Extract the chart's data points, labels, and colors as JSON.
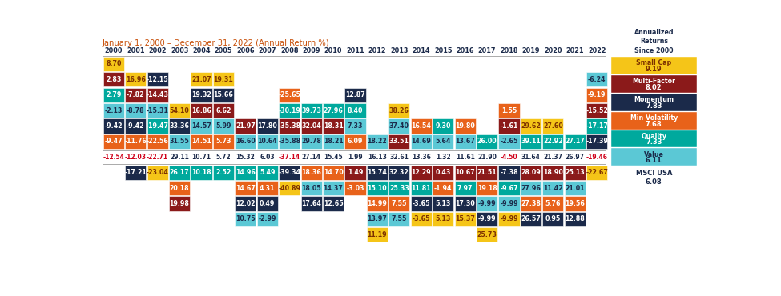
{
  "title": "January 1, 2000 – December 31, 2022 (Annual Return %)",
  "years": [
    2000,
    2001,
    2002,
    2003,
    2004,
    2005,
    2006,
    2007,
    2008,
    2009,
    2010,
    2011,
    2012,
    2013,
    2014,
    2015,
    2016,
    2017,
    2018,
    2019,
    2020,
    2021,
    2022
  ],
  "factors": {
    "Small Cap": {
      "color": "#F5C518",
      "text_color": "#7B3000",
      "annualized": 9.19
    },
    "Multi-Factor": {
      "color": "#8B1A1A",
      "text_color": "#ffffff",
      "annualized": 8.02
    },
    "Momentum": {
      "color": "#1B2A4A",
      "text_color": "#ffffff",
      "annualized": 7.83
    },
    "Min Volatility": {
      "color": "#E8621A",
      "text_color": "#ffffff",
      "annualized": 7.68
    },
    "Quality": {
      "color": "#00A99D",
      "text_color": "#ffffff",
      "annualized": 7.33
    },
    "Value": {
      "color": "#5BC8D5",
      "text_color": "#1B2A4A",
      "annualized": 6.11
    }
  },
  "benchmark_label": "MSCI USA",
  "benchmark_annualized": 6.08,
  "benchmark_returns": [
    -12.54,
    -12.03,
    -22.71,
    29.11,
    10.71,
    5.72,
    15.32,
    6.03,
    -37.14,
    27.14,
    15.45,
    1.99,
    16.13,
    32.61,
    13.36,
    1.32,
    11.61,
    21.9,
    -4.5,
    31.64,
    21.37,
    26.97,
    -19.46
  ],
  "above_rows": [
    [
      [
        "Small Cap",
        8.7
      ],
      [
        "",
        ""
      ],
      [
        "",
        ""
      ],
      [
        "",
        ""
      ],
      [
        "",
        ""
      ],
      [
        "",
        ""
      ],
      [
        "",
        ""
      ],
      [
        "",
        ""
      ],
      [
        "",
        ""
      ],
      [
        "",
        ""
      ],
      [
        "",
        ""
      ],
      [
        "",
        ""
      ],
      [
        "",
        ""
      ],
      [
        "",
        ""
      ],
      [
        "",
        ""
      ],
      [
        "",
        ""
      ],
      [
        "",
        ""
      ],
      [
        "",
        ""
      ],
      [
        "",
        ""
      ],
      [
        "",
        ""
      ],
      [
        "",
        ""
      ],
      [
        "",
        ""
      ],
      [
        "",
        ""
      ]
    ],
    [
      [
        "Multi-Factor",
        2.83
      ],
      [
        "Small Cap",
        16.96
      ],
      [
        "Momentum",
        -12.15
      ],
      [
        "",
        ""
      ],
      [
        "Small Cap",
        21.07
      ],
      [
        "Small Cap",
        19.31
      ],
      [
        "",
        ""
      ],
      [
        "",
        ""
      ],
      [
        "",
        ""
      ],
      [
        "",
        ""
      ],
      [
        "",
        ""
      ],
      [
        "",
        ""
      ],
      [
        "",
        ""
      ],
      [
        "",
        ""
      ],
      [
        "",
        ""
      ],
      [
        "",
        ""
      ],
      [
        "",
        ""
      ],
      [
        "",
        ""
      ],
      [
        "",
        ""
      ],
      [
        "",
        ""
      ],
      [
        "",
        ""
      ],
      [
        "",
        ""
      ],
      [
        "Value",
        -6.24
      ]
    ],
    [
      [
        "Quality",
        2.79
      ],
      [
        "Multi-Factor",
        -7.82
      ],
      [
        "Multi-Factor",
        -14.43
      ],
      [
        "",
        ""
      ],
      [
        "Momentum",
        19.32
      ],
      [
        "Momentum",
        15.66
      ],
      [
        "",
        ""
      ],
      [
        "",
        ""
      ],
      [
        "Min Volatility",
        -25.65
      ],
      [
        "",
        ""
      ],
      [
        "",
        ""
      ],
      [
        "Momentum",
        12.87
      ],
      [
        "",
        ""
      ],
      [
        "",
        ""
      ],
      [
        "",
        ""
      ],
      [
        "",
        ""
      ],
      [
        "",
        ""
      ],
      [
        "",
        ""
      ],
      [
        "",
        ""
      ],
      [
        "",
        ""
      ],
      [
        "",
        ""
      ],
      [
        "",
        ""
      ],
      [
        "Min Volatility",
        -9.19
      ]
    ],
    [
      [
        "Value",
        -2.13
      ],
      [
        "Value",
        -8.78
      ],
      [
        "Value",
        -15.31
      ],
      [
        "Small Cap",
        54.1
      ],
      [
        "Multi-Factor",
        16.86
      ],
      [
        "Multi-Factor",
        6.62
      ],
      [
        "",
        ""
      ],
      [
        "",
        ""
      ],
      [
        "Quality",
        -30.19
      ],
      [
        "Quality",
        39.73
      ],
      [
        "Quality",
        27.96
      ],
      [
        "Quality",
        8.4
      ],
      [
        "",
        ""
      ],
      [
        "Small Cap",
        38.26
      ],
      [
        "",
        ""
      ],
      [
        "",
        ""
      ],
      [
        "",
        ""
      ],
      [
        "",
        ""
      ],
      [
        "Min Volatility",
        1.55
      ],
      [
        "",
        ""
      ],
      [
        "",
        ""
      ],
      [
        "",
        ""
      ],
      [
        "Multi-Factor",
        -15.52
      ]
    ],
    [
      [
        "Momentum",
        -9.42
      ],
      [
        "Momentum",
        -9.42
      ],
      [
        "Quality",
        -19.47
      ],
      [
        "Momentum",
        33.36
      ],
      [
        "Value",
        14.57
      ],
      [
        "Value",
        5.99
      ],
      [
        "Multi-Factor",
        21.97
      ],
      [
        "Momentum",
        17.8
      ],
      [
        "Multi-Factor",
        -35.38
      ],
      [
        "Multi-Factor",
        32.04
      ],
      [
        "Multi-Factor",
        18.31
      ],
      [
        "Value",
        7.33
      ],
      [
        "",
        ""
      ],
      [
        "Value",
        37.4
      ],
      [
        "Min Volatility",
        16.54
      ],
      [
        "Quality",
        9.3
      ],
      [
        "Min Volatility",
        19.8
      ],
      [
        "",
        ""
      ],
      [
        "Multi-Factor",
        -1.61
      ],
      [
        "Small Cap",
        29.62
      ],
      [
        "Small Cap",
        27.6
      ],
      [
        "",
        ""
      ],
      [
        "Quality",
        -17.17
      ]
    ],
    [
      [
        "Min Volatility",
        -9.47
      ],
      [
        "Min Volatility",
        -11.76
      ],
      [
        "Min Volatility",
        -22.56
      ],
      [
        "Value",
        31.55
      ],
      [
        "Min Volatility",
        14.51
      ],
      [
        "Min Volatility",
        5.73
      ],
      [
        "Value",
        16.6
      ],
      [
        "Value",
        10.64
      ],
      [
        "Value",
        -35.88
      ],
      [
        "Value",
        29.78
      ],
      [
        "Value",
        18.21
      ],
      [
        "Min Volatility",
        6.09
      ],
      [
        "Value",
        18.22
      ],
      [
        "Multi-Factor",
        33.51
      ],
      [
        "Value",
        14.69
      ],
      [
        "Value",
        5.64
      ],
      [
        "Value",
        13.67
      ],
      [
        "Quality",
        26.0
      ],
      [
        "Value",
        -2.65
      ],
      [
        "Quality",
        39.11
      ],
      [
        "Quality",
        22.92
      ],
      [
        "Quality",
        27.17
      ],
      [
        "Momentum",
        -17.39
      ]
    ]
  ],
  "below_rows": [
    [
      [
        "",
        ""
      ],
      [
        "Momentum",
        -17.21
      ],
      [
        "Small Cap",
        -23.04
      ],
      [
        "Quality",
        26.17
      ],
      [
        "Quality",
        10.18
      ],
      [
        "Quality",
        2.52
      ],
      [
        "Quality",
        14.96
      ],
      [
        "Quality",
        5.49
      ],
      [
        "Momentum",
        -39.34
      ],
      [
        "Min Volatility",
        18.36
      ],
      [
        "Min Volatility",
        14.7
      ],
      [
        "Multi-Factor",
        1.49
      ],
      [
        "Momentum",
        15.74
      ],
      [
        "Momentum",
        32.32
      ],
      [
        "Multi-Factor",
        12.29
      ],
      [
        "Multi-Factor",
        0.43
      ],
      [
        "Multi-Factor",
        10.67
      ],
      [
        "Multi-Factor",
        21.51
      ],
      [
        "Momentum",
        -7.38
      ],
      [
        "Multi-Factor",
        28.09
      ],
      [
        "Multi-Factor",
        18.9
      ],
      [
        "Multi-Factor",
        25.13
      ],
      [
        "Small Cap",
        -22.67
      ]
    ],
    [
      [
        "",
        ""
      ],
      [
        "",
        ""
      ],
      [
        "",
        ""
      ],
      [
        "Min Volatility",
        20.18
      ],
      [
        "",
        ""
      ],
      [
        "",
        ""
      ],
      [
        "Min Volatility",
        14.67
      ],
      [
        "Min Volatility",
        4.31
      ],
      [
        "Small Cap",
        -40.89
      ],
      [
        "Value",
        18.05
      ],
      [
        "Value",
        14.37
      ],
      [
        "Min Volatility",
        -3.03
      ],
      [
        "Quality",
        15.1
      ],
      [
        "Quality",
        25.33
      ],
      [
        "Quality",
        11.81
      ],
      [
        "Min Volatility",
        -1.94
      ],
      [
        "Quality",
        7.97
      ],
      [
        "Min Volatility",
        19.18
      ],
      [
        "Quality",
        -9.67
      ],
      [
        "Value",
        27.96
      ],
      [
        "Value",
        11.42
      ],
      [
        "Value",
        21.01
      ],
      [
        "",
        ""
      ]
    ],
    [
      [
        "",
        ""
      ],
      [
        "",
        ""
      ],
      [
        "",
        ""
      ],
      [
        "Multi-Factor",
        19.98
      ],
      [
        "",
        ""
      ],
      [
        "",
        ""
      ],
      [
        "Momentum",
        12.02
      ],
      [
        "Momentum",
        0.49
      ],
      [
        "",
        ""
      ],
      [
        "Momentum",
        17.64
      ],
      [
        "Momentum",
        12.65
      ],
      [
        "",
        ""
      ],
      [
        "Min Volatility",
        14.99
      ],
      [
        "Min Volatility",
        7.55
      ],
      [
        "Momentum",
        -3.65
      ],
      [
        "Momentum",
        5.13
      ],
      [
        "Momentum",
        17.3
      ],
      [
        "Value",
        -9.99
      ],
      [
        "Value",
        -9.99
      ],
      [
        "Min Volatility",
        27.38
      ],
      [
        "Min Volatility",
        5.76
      ],
      [
        "Min Volatility",
        19.56
      ],
      [
        "",
        ""
      ]
    ],
    [
      [
        "",
        ""
      ],
      [
        "",
        ""
      ],
      [
        "",
        ""
      ],
      [
        "",
        ""
      ],
      [
        "",
        ""
      ],
      [
        "",
        ""
      ],
      [
        "Value",
        10.75
      ],
      [
        "Value",
        -2.99
      ],
      [
        "",
        ""
      ],
      [
        "",
        ""
      ],
      [
        "",
        ""
      ],
      [
        "",
        ""
      ],
      [
        "Value",
        13.97
      ],
      [
        "Value",
        7.55
      ],
      [
        "Small Cap",
        -3.65
      ],
      [
        "Small Cap",
        5.13
      ],
      [
        "Small Cap",
        15.37
      ],
      [
        "Momentum",
        -9.99
      ],
      [
        "Small Cap",
        -9.99
      ],
      [
        "Momentum",
        26.57
      ],
      [
        "Momentum",
        0.95
      ],
      [
        "Momentum",
        12.88
      ],
      [
        "",
        ""
      ]
    ],
    [
      [
        "",
        ""
      ],
      [
        "",
        ""
      ],
      [
        "",
        ""
      ],
      [
        "",
        ""
      ],
      [
        "",
        ""
      ],
      [
        "",
        ""
      ],
      [
        "",
        ""
      ],
      [
        "",
        ""
      ],
      [
        "",
        ""
      ],
      [
        "",
        ""
      ],
      [
        "",
        ""
      ],
      [
        "",
        ""
      ],
      [
        "Small Cap",
        11.19
      ],
      [
        "",
        ""
      ],
      [
        "",
        ""
      ],
      [
        "",
        ""
      ],
      [
        "",
        ""
      ],
      [
        "Small Cap",
        25.73
      ],
      [
        "",
        ""
      ],
      [
        "",
        ""
      ],
      [
        "",
        ""
      ],
      [
        "",
        ""
      ],
      [
        "",
        ""
      ]
    ]
  ],
  "legend_factor_order": [
    "Small Cap",
    "Multi-Factor",
    "Momentum",
    "Min Volatility",
    "Quality",
    "Value"
  ],
  "fig_width": 9.75,
  "fig_height": 3.7,
  "dpi": 100
}
